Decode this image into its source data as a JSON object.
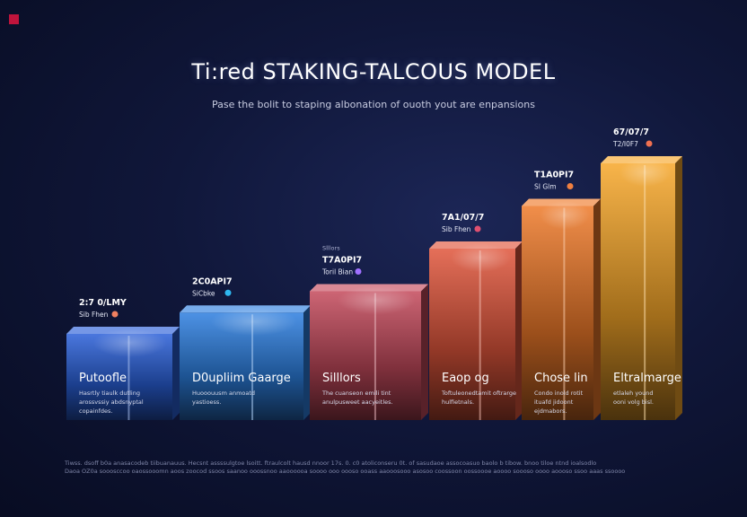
{
  "title": "Ti:red STAKING-TALCOUS MODEL",
  "subtitle": "Pase the bolit to staping albonation of ouoth yout are enpansions",
  "footer": {
    "line1": "Tiwss. dsoff b0a anasacodeb tiibuanauus. Hecsnt assssulgtoe lsoitt. ftraulcolt hausd nnoor 17s. 0. c0 atoliconseru 0t. of sasudaoe assocoasuo baolo b tibow. bnoo tiloe ntnd ioalsodlo",
    "line2": "Daoa OZ0a sooosccoo oaossooomn aoos zoocod ssoos saanoo ooossnoo aaoooooa soooo ooo oooso ooass aaooosooo asosoo coossoon oossoooe aoooo soooso oooo aoooso ssoo aaas ssoooo"
  },
  "chart_data": {
    "type": "bar",
    "style": "3d-columns",
    "categories": [
      "Putoofle",
      "D0upliim Gaarge",
      "Silllors",
      "Eaop og",
      "Chose lin",
      "Eltralmarge"
    ],
    "values": [
      1,
      1.5,
      2,
      3,
      4,
      5
    ],
    "value_note": "relative column heights; no numeric axis is printed",
    "annotations": [
      {
        "small": "",
        "value": "2:7 0/LMY",
        "sub": "Sib Fhen"
      },
      {
        "small": "",
        "value": "2C0API7",
        "sub": "SiCbke"
      },
      {
        "small": "Slllors",
        "value": "T7A0PI7",
        "sub": "Toril Bian"
      },
      {
        "small": "",
        "value": "7A1/07/7",
        "sub": "Sib Fhen"
      },
      {
        "small": "",
        "value": "T1A0PI7",
        "sub": "SI Glm"
      },
      {
        "small": "",
        "value": "67/07/7",
        "sub": "T2/I0F7"
      }
    ],
    "descriptions": [
      [
        "Hasrtly tiaulk dutling",
        "arossvssiy abdsnyptal",
        "copainfdes."
      ],
      [
        "Huooouusm anmoatd",
        "yastioess."
      ],
      [
        "The cuanseon emili tint",
        "anulpusweet aacyeitles."
      ],
      [
        "Toftuleonedtamit oftrarge",
        "hulfietnals."
      ],
      [
        "Condo inold rotit",
        "ituafd jidoont",
        "ejdmabors."
      ],
      [
        "etlaleh yound",
        "ooni volg bisl."
      ]
    ],
    "colors": [
      "#2a5fd8",
      "#2d7fe0",
      "#c44a5c",
      "#e0563c",
      "#ef7a2a",
      "#f7a72a"
    ],
    "marker_colors": [
      "#f08060",
      "#2fb8f0",
      "#a070ff",
      "#e05070",
      "#f08040",
      "#f07050"
    ]
  }
}
